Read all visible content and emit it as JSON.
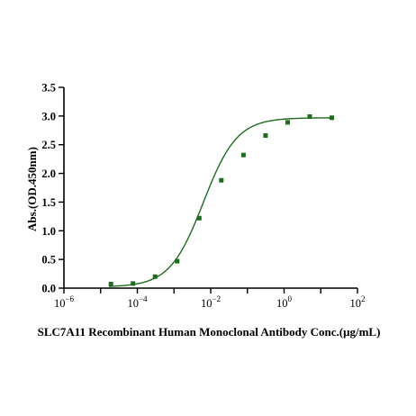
{
  "chart_data": {
    "type": "scatter",
    "xlabel": "SLC7A11 Recombinant Human Monoclonal Antibody Conc.(μg/mL)",
    "ylabel": "Abs.(OD.450nm)",
    "x_scale": "log10",
    "xlim": [
      1e-06,
      100
    ],
    "ylim": [
      0,
      3.5
    ],
    "x_ticks": [
      {
        "base": "10",
        "exp": "-6"
      },
      {
        "base": "10",
        "exp": "-4"
      },
      {
        "base": "10",
        "exp": "-2"
      },
      {
        "base": "10",
        "exp": "0"
      },
      {
        "base": "10",
        "exp": "2"
      }
    ],
    "y_ticks": [
      "0.0",
      "0.5",
      "1.0",
      "1.5",
      "2.0",
      "2.5",
      "3.0",
      "3.5"
    ],
    "series": [
      {
        "x": [
          1.91e-05,
          7.63e-05,
          0.000305,
          0.00122,
          0.00488,
          0.0195,
          0.0781,
          0.3125,
          1.25,
          5.0,
          20.0
        ],
        "y": [
          0.07,
          0.08,
          0.2,
          0.47,
          1.22,
          1.88,
          2.32,
          2.66,
          2.89,
          2.99,
          2.97
        ],
        "fit": {
          "bottom": 0.02,
          "top": 2.97,
          "log_ec50": -2.2,
          "hill": 0.95
        }
      }
    ],
    "colors": {
      "series": "#1f6b1f",
      "axes": "#000000"
    },
    "grid": false
  }
}
